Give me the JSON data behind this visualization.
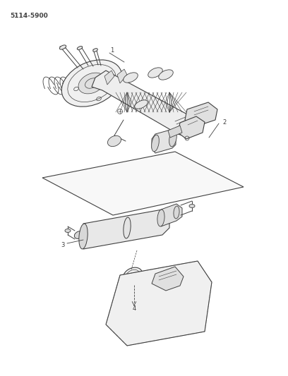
{
  "part_number": "5114-5900",
  "background_color": "#ffffff",
  "line_color": "#404040",
  "part_number_fontsize": 6.5,
  "figsize": [
    4.08,
    5.33
  ],
  "dpi": 100
}
